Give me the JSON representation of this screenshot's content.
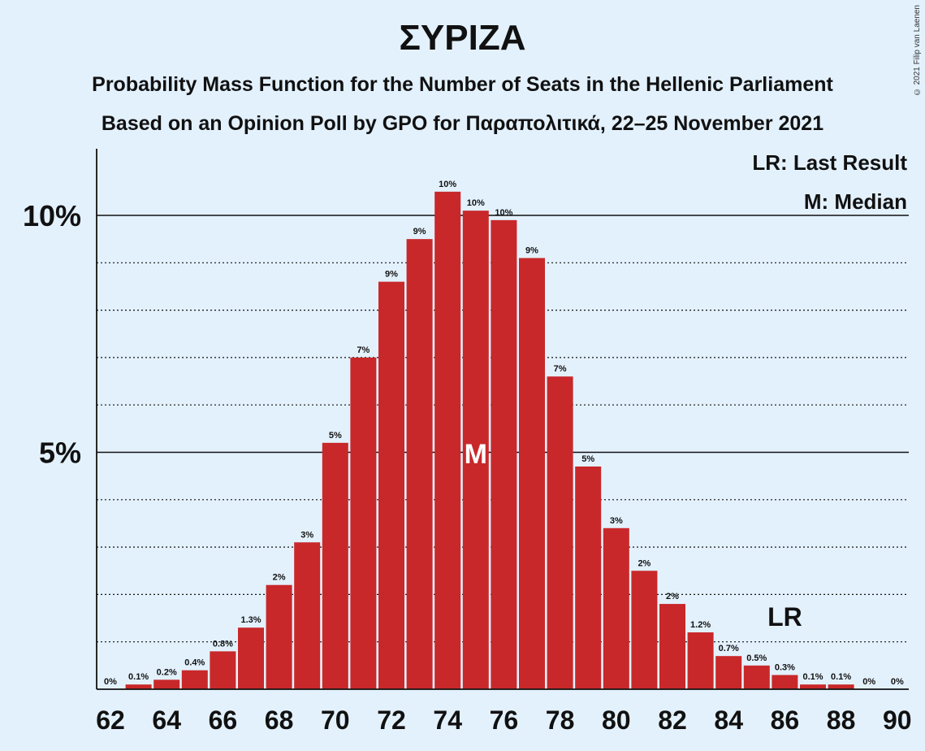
{
  "title": "ΣΥΡΙΖΑ",
  "subtitle1": "Probability Mass Function for the Number of Seats in the Hellenic Parliament",
  "subtitle2": "Based on an Opinion Poll by GPO for Παραπολιτικά, 22–25 November 2021",
  "copyright": "© 2021 Filip van Laenen",
  "legend": {
    "lr": "LR: Last Result",
    "m": "M: Median"
  },
  "colors": {
    "bar": "#c8282a",
    "background": "#e3f1fd"
  },
  "chart_data": {
    "type": "bar",
    "x": [
      62,
      63,
      64,
      65,
      66,
      67,
      68,
      69,
      70,
      71,
      72,
      73,
      74,
      75,
      76,
      77,
      78,
      79,
      80,
      81,
      82,
      83,
      84,
      85,
      86,
      87,
      88,
      89,
      90
    ],
    "values": [
      0,
      0.1,
      0.2,
      0.4,
      0.8,
      1.3,
      2.2,
      3.1,
      5.2,
      7.0,
      8.6,
      9.5,
      10.5,
      10.1,
      9.9,
      9.1,
      6.6,
      4.7,
      3.4,
      2.5,
      1.8,
      1.2,
      0.7,
      0.5,
      0.3,
      0.1,
      0.1,
      0,
      0
    ],
    "labels": [
      "0%",
      "0.1%",
      "0.2%",
      "0.4%",
      "0.8%",
      "1.3%",
      "2%",
      "3%",
      "5%",
      "7%",
      "9%",
      "9%",
      "10%",
      "10%",
      "10%",
      "9%",
      "7%",
      "5%",
      "3%",
      "2%",
      "2%",
      "1.2%",
      "0.7%",
      "0.5%",
      "0.3%",
      "0.1%",
      "0.1%",
      "0%",
      "0%"
    ],
    "x_tick_labels": [
      "62",
      "64",
      "66",
      "68",
      "70",
      "72",
      "74",
      "76",
      "78",
      "80",
      "82",
      "84",
      "86",
      "88",
      "90"
    ],
    "y_tick_labels": [
      {
        "value": 5,
        "label": "5%"
      },
      {
        "value": 10,
        "label": "10%"
      }
    ],
    "ylim": [
      0,
      11.5
    ],
    "median": 75,
    "median_label": "M",
    "last_result": 86,
    "last_result_label": "LR",
    "grid": true,
    "legend_position": "top-right"
  }
}
